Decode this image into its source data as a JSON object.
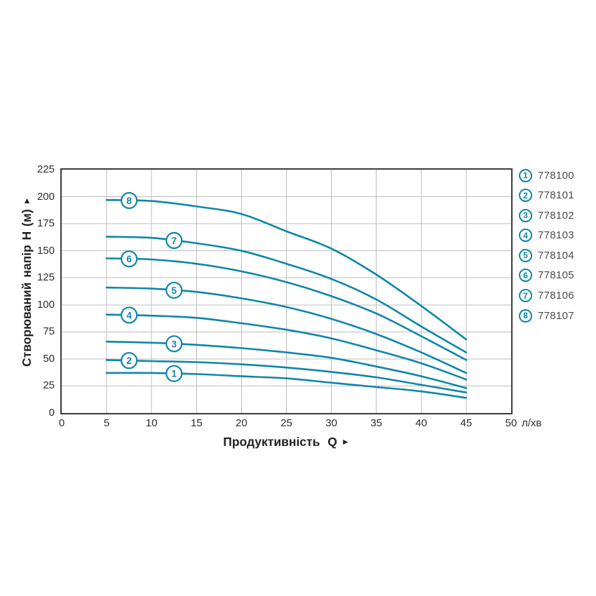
{
  "ui": {
    "arrow_right": "►"
  },
  "colors": {
    "curve": "#0e86a8",
    "grid": "#bdbdbd",
    "plot_border": "#3b3b3b",
    "tick_text": "#2e2e2e",
    "legend_text": "#4b4b4b",
    "background": "#ffffff"
  },
  "legend": {
    "items": [
      {
        "num": "1",
        "code": "778100"
      },
      {
        "num": "2",
        "code": "778101"
      },
      {
        "num": "3",
        "code": "778102"
      },
      {
        "num": "4",
        "code": "778103"
      },
      {
        "num": "5",
        "code": "778104"
      },
      {
        "num": "6",
        "code": "778105"
      },
      {
        "num": "7",
        "code": "778106"
      },
      {
        "num": "8",
        "code": "778107"
      }
    ]
  },
  "chart_data": {
    "type": "line",
    "title": "",
    "xlabel": "Продуктивність Q",
    "ylabel": "Створюваний напір H (м)",
    "x_unit": "л/хв",
    "xlim": [
      0,
      50
    ],
    "ylim": [
      0,
      225
    ],
    "x_ticks": [
      0,
      5,
      10,
      15,
      20,
      25,
      30,
      35,
      40,
      45,
      50
    ],
    "y_ticks": [
      0,
      25,
      50,
      75,
      100,
      125,
      150,
      175,
      200,
      225
    ],
    "grid": true,
    "legend_position": "right-outside",
    "x": [
      5,
      10,
      15,
      20,
      25,
      30,
      35,
      40,
      45
    ],
    "series": [
      {
        "name": "1",
        "model": "778100",
        "label_q": 12.5,
        "values": [
          37,
          37,
          36,
          34,
          32,
          28,
          24,
          20,
          14
        ]
      },
      {
        "name": "2",
        "model": "778101",
        "label_q": 7.5,
        "values": [
          49,
          48,
          47,
          45,
          42,
          38,
          33,
          26,
          19
        ]
      },
      {
        "name": "3",
        "model": "778102",
        "label_q": 12.5,
        "values": [
          66,
          65,
          63,
          60,
          56,
          51,
          43,
          34,
          23
        ]
      },
      {
        "name": "4",
        "model": "778103",
        "label_q": 7.5,
        "values": [
          91,
          90,
          88,
          83,
          77,
          69,
          58,
          46,
          31
        ]
      },
      {
        "name": "5",
        "model": "778104",
        "label_q": 12.5,
        "values": [
          116,
          115,
          112,
          106,
          98,
          87,
          73,
          56,
          37
        ]
      },
      {
        "name": "6",
        "model": "778105",
        "label_q": 7.5,
        "values": [
          143,
          142,
          138,
          131,
          121,
          108,
          92,
          71,
          49
        ]
      },
      {
        "name": "7",
        "model": "778106",
        "label_q": 12.5,
        "values": [
          163,
          162,
          157,
          150,
          138,
          124,
          105,
          80,
          56
        ]
      },
      {
        "name": "8",
        "model": "778107",
        "label_q": 7.5,
        "values": [
          197,
          196,
          191,
          184,
          168,
          152,
          128,
          99,
          68
        ]
      }
    ]
  }
}
